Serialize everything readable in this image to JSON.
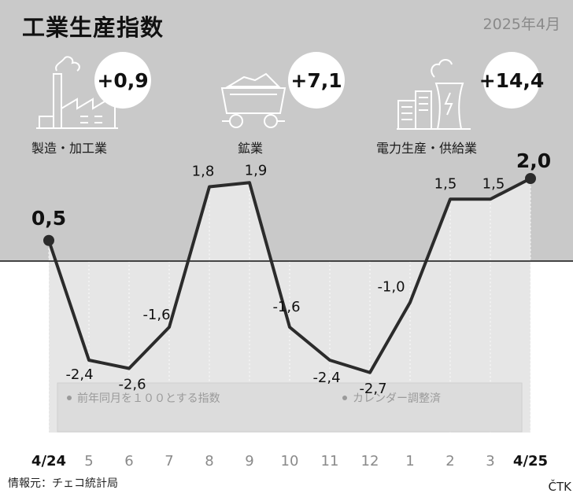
{
  "header": {
    "title": "工業生産指数",
    "period": "2025年4月"
  },
  "categories_summary": [
    {
      "label": "製造・加工業",
      "value": "+0,9",
      "icon": "factory-icon"
    },
    {
      "label": "鉱業",
      "value": "+7,1",
      "icon": "mine-cart-icon"
    },
    {
      "label": "電力生産・供給業",
      "value": "+14,4",
      "icon": "power-plant-icon"
    }
  ],
  "chart_data": {
    "type": "line",
    "categories": [
      "4/24",
      "5",
      "6",
      "7",
      "8",
      "9",
      "10",
      "11",
      "12",
      "1",
      "2",
      "3",
      "4/25"
    ],
    "values": [
      0.5,
      -2.4,
      -2.6,
      -1.6,
      1.8,
      1.9,
      -1.6,
      -2.4,
      -2.7,
      -1.0,
      1.5,
      1.5,
      2.0
    ],
    "data_labels": [
      "0,5",
      "-2,4",
      "-2,6",
      "-1,6",
      "1,8",
      "1,9",
      "-1,6",
      "-2,4",
      "-2,7",
      "-1,0",
      "1,5",
      "1,5",
      "2,0"
    ],
    "emphasized_points": [
      0,
      12
    ],
    "emphasized_ticks": [
      0,
      12
    ],
    "legend": [
      "前年同月を１００とする指数",
      "カレンダー調整済"
    ],
    "legend_placement": "bottom",
    "baseline": 0,
    "grid": false
  },
  "footer": {
    "source": "情報元：チェコ統計局",
    "agency": "ČTK"
  },
  "colors": {
    "top_band": "#c9c9c9",
    "plot_bg": "#e6e6e6",
    "line": "#2b2b2b",
    "tick_muted": "#8a8a8a"
  }
}
